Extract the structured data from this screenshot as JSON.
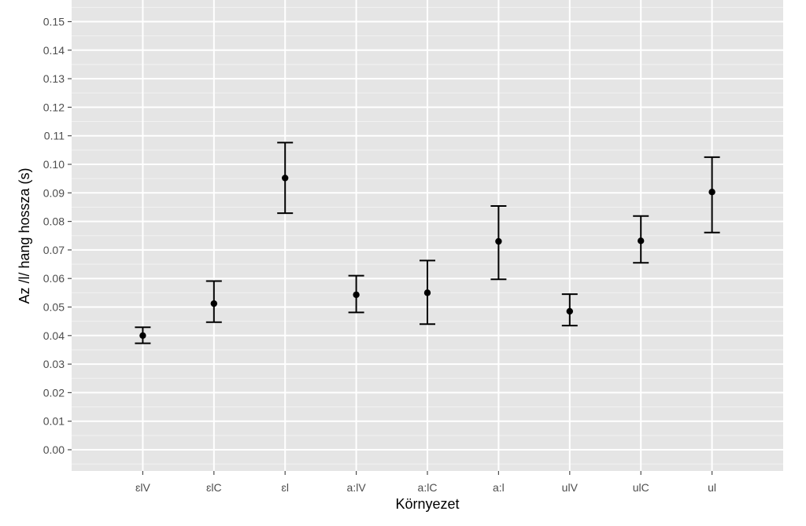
{
  "chart_data": {
    "type": "scatter",
    "xlabel": "Környezet",
    "ylabel": "Az /l/ hang hossza (s)",
    "categories": [
      "ɛlV",
      "ɛlC",
      "ɛl",
      "a:lV",
      "a:lC",
      "a:l",
      "ulV",
      "ulC",
      "ul"
    ],
    "y": [
      0.04,
      0.0512,
      0.0952,
      0.0543,
      0.055,
      0.073,
      0.0485,
      0.0732,
      0.0903
    ],
    "ymin": [
      0.0373,
      0.0447,
      0.0829,
      0.0481,
      0.044,
      0.0597,
      0.0435,
      0.0655,
      0.0761
    ],
    "ymax": [
      0.0429,
      0.0591,
      0.1076,
      0.061,
      0.0663,
      0.0854,
      0.0545,
      0.0819,
      0.1025
    ],
    "ylim": [
      -0.007,
      0.16
    ],
    "yticks": [
      "0.00",
      "0.01",
      "0.02",
      "0.03",
      "0.04",
      "0.05",
      "0.06",
      "0.07",
      "0.08",
      "0.09",
      "0.10",
      "0.11",
      "0.12",
      "0.13",
      "0.14",
      "0.15"
    ],
    "grid": true,
    "panel_color": "#e5e5e5",
    "grid_color": "#ffffff",
    "point_color": "#000000"
  }
}
